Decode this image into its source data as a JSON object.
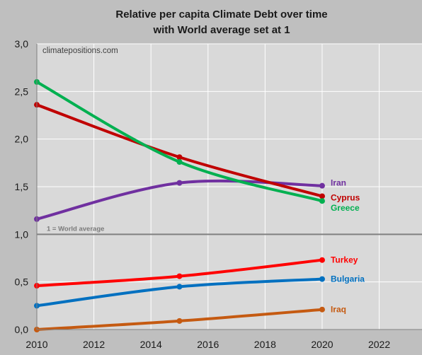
{
  "chart_data": {
    "type": "line",
    "title": "Relative per capita Climate Debt over time",
    "subtitle": "with World average set at 1",
    "watermark": "climatepositions.com",
    "xlim": [
      2010,
      2023.5
    ],
    "ylim": [
      0,
      3
    ],
    "x_ticks": [
      "2010",
      "2012",
      "2014",
      "2016",
      "2018",
      "2020",
      "2022"
    ],
    "y_ticks": [
      "0,0",
      "0,5",
      "1,0",
      "1,5",
      "2,0",
      "2,5",
      "3,0"
    ],
    "grid": true,
    "reference_line": {
      "y": 1.0,
      "label": "1 = World average",
      "color": "#808080"
    },
    "x": [
      2010,
      2015,
      2020
    ],
    "series": [
      {
        "name": "Iran",
        "color": "#7030a0",
        "values": [
          1.16,
          1.54,
          1.51
        ]
      },
      {
        "name": "Cyprus",
        "color": "#c00000",
        "values": [
          2.36,
          1.81,
          1.4
        ]
      },
      {
        "name": "Greece",
        "color": "#00b050",
        "values": [
          2.6,
          1.76,
          1.35
        ]
      },
      {
        "name": "Turkey",
        "color": "#ff0000",
        "values": [
          0.46,
          0.56,
          0.73
        ]
      },
      {
        "name": "Bulgaria",
        "color": "#0070c0",
        "values": [
          0.25,
          0.45,
          0.53
        ]
      },
      {
        "name": "Iraq",
        "color": "#c55a11",
        "values": [
          0.0,
          0.09,
          0.21
        ]
      }
    ]
  }
}
